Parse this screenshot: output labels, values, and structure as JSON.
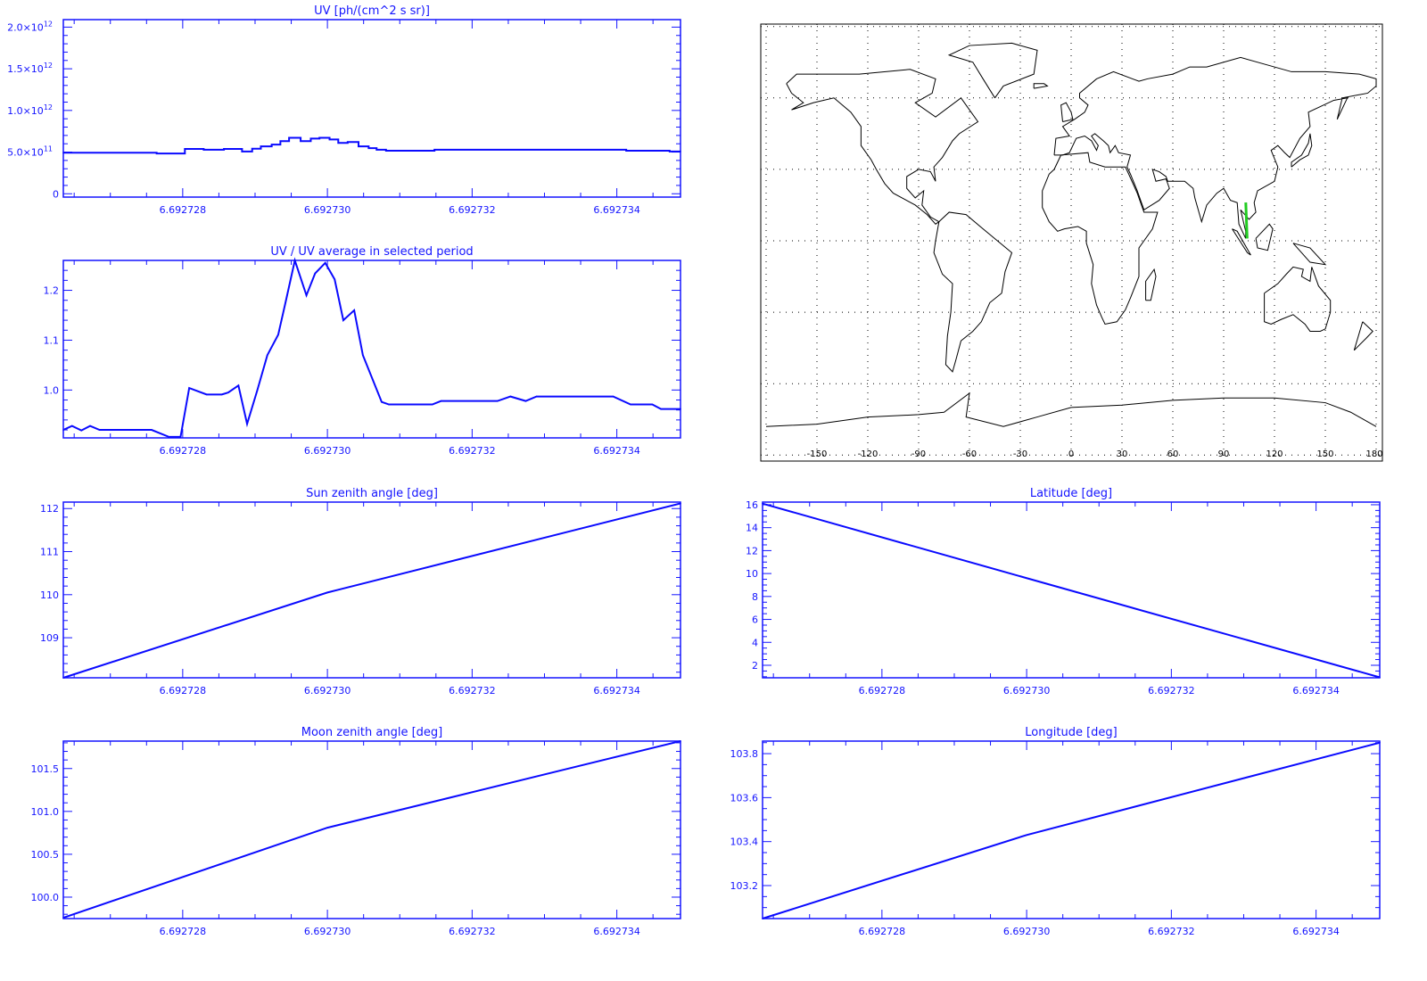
{
  "colors": {
    "axis": "#1414ff",
    "series": "#0a0aff",
    "map_coast": "#000000",
    "map_track": "#22cc22"
  },
  "chart_data": [
    {
      "id": "uv",
      "type": "line",
      "drawstyle": "step",
      "title": "UV [ph/(cm^2 s sr)]",
      "xlim": [
        6.69272635,
        6.69273488
      ],
      "ylim": [
        -40000000000.0,
        2090000000000.0
      ],
      "xticks": [
        {
          "v": 6.692728,
          "label": "6.692728"
        },
        {
          "v": 6.69273,
          "label": "6.692730"
        },
        {
          "v": 6.692732,
          "label": "6.692732"
        },
        {
          "v": 6.692734,
          "label": "6.692734"
        }
      ],
      "xminor": 5e-07,
      "yticks": [
        {
          "v": 0,
          "label": "0"
        },
        {
          "v": 500000000000.0,
          "label": "5.0×10",
          "exp": "11"
        },
        {
          "v": 1000000000000.0,
          "label": "1.0×10",
          "exp": "12"
        },
        {
          "v": 1500000000000.0,
          "label": "1.5×10",
          "exp": "12"
        },
        {
          "v": 2000000000000.0,
          "label": "2.0×10",
          "exp": "12"
        }
      ],
      "yminor": 100000000000.0,
      "x": [
        6.69272635,
        6.69272764,
        6.69272803,
        6.69272829,
        6.69272857,
        6.69272882,
        6.69272896,
        6.69272908,
        6.69272923,
        6.69272935,
        6.69272947,
        6.69272963,
        6.69272977,
        6.69272989,
        6.69273003,
        6.69273015,
        6.69273028,
        6.69273043,
        6.69273057,
        6.69273068,
        6.69273081,
        6.69273148,
        6.69273413,
        6.69273473,
        6.69273488
      ],
      "y": [
        493000000000.0,
        483000000000.0,
        538000000000.0,
        528000000000.0,
        538000000000.0,
        507000000000.0,
        541000000000.0,
        569000000000.0,
        590000000000.0,
        631000000000.0,
        672000000000.0,
        631000000000.0,
        662000000000.0,
        672000000000.0,
        652000000000.0,
        610000000000.0,
        621000000000.0,
        569000000000.0,
        548000000000.0,
        528000000000.0,
        517000000000.0,
        528000000000.0,
        517000000000.0,
        507000000000.0,
        507000000000.0
      ]
    },
    {
      "id": "uv-ratio",
      "type": "line",
      "title": "UV / UV average in selected period",
      "xlim": [
        6.69272635,
        6.69273488
      ],
      "ylim": [
        0.904,
        1.26
      ],
      "xticks": [
        {
          "v": 6.692728,
          "label": "6.692728"
        },
        {
          "v": 6.69273,
          "label": "6.692730"
        },
        {
          "v": 6.692732,
          "label": "6.692732"
        },
        {
          "v": 6.692734,
          "label": "6.692734"
        }
      ],
      "xminor": 5e-07,
      "yticks": [
        {
          "v": 1.0,
          "label": "1.0"
        },
        {
          "v": 1.1,
          "label": "1.1"
        },
        {
          "v": 1.2,
          "label": "1.2"
        }
      ],
      "yminor": 0.02,
      "x": [
        6.69272635,
        6.69272647,
        6.6927266,
        6.69272672,
        6.69272685,
        6.69272757,
        6.69272781,
        6.69272797,
        6.69272809,
        6.69272833,
        6.69272854,
        6.69272863,
        6.69272877,
        6.69272889,
        6.69272903,
        6.69272917,
        6.69272932,
        6.69272942,
        6.69272955,
        6.69272971,
        6.69272983,
        6.69272997,
        6.6927301,
        6.69273022,
        6.69273037,
        6.69273049,
        6.69273075,
        6.69273085,
        6.69273145,
        6.69273157,
        6.69273235,
        6.69273253,
        6.69273274,
        6.69273289,
        6.69273395,
        6.69273419,
        6.69273449,
        6.69273461,
        6.69273488
      ],
      "y": [
        0.92,
        0.928,
        0.919,
        0.928,
        0.92,
        0.92,
        0.906,
        0.906,
        1.004,
        0.991,
        0.991,
        0.995,
        1.009,
        0.932,
        0.999,
        1.07,
        1.111,
        1.175,
        1.26,
        1.19,
        1.234,
        1.255,
        1.222,
        1.14,
        1.16,
        1.07,
        0.976,
        0.971,
        0.971,
        0.978,
        0.978,
        0.987,
        0.978,
        0.987,
        0.987,
        0.971,
        0.971,
        0.962,
        0.962
      ]
    },
    {
      "id": "sun-zenith",
      "type": "line",
      "title": "Sun zenith angle [deg]",
      "xlim": [
        6.69272635,
        6.69273488
      ],
      "ylim": [
        108.07,
        112.15
      ],
      "xticks": [
        {
          "v": 6.692728,
          "label": "6.692728"
        },
        {
          "v": 6.69273,
          "label": "6.692730"
        },
        {
          "v": 6.692732,
          "label": "6.692732"
        },
        {
          "v": 6.692734,
          "label": "6.692734"
        }
      ],
      "xminor": 5e-07,
      "yticks": [
        {
          "v": 109,
          "label": "109"
        },
        {
          "v": 110,
          "label": "110"
        },
        {
          "v": 111,
          "label": "111"
        },
        {
          "v": 112,
          "label": "112"
        }
      ],
      "yminor": 0.2,
      "x": [
        6.69272635,
        6.69273,
        6.69273488
      ],
      "y": [
        108.07,
        110.05,
        112.12
      ]
    },
    {
      "id": "moon-zenith",
      "type": "line",
      "title": "Moon zenith angle [deg]",
      "xlim": [
        6.69272635,
        6.69273488
      ],
      "ylim": [
        99.75,
        101.82
      ],
      "xticks": [
        {
          "v": 6.692728,
          "label": "6.692728"
        },
        {
          "v": 6.69273,
          "label": "6.692730"
        },
        {
          "v": 6.692732,
          "label": "6.692732"
        },
        {
          "v": 6.692734,
          "label": "6.692734"
        }
      ],
      "xminor": 5e-07,
      "yticks": [
        {
          "v": 100.0,
          "label": "100.0"
        },
        {
          "v": 100.5,
          "label": "100.5"
        },
        {
          "v": 101.0,
          "label": "101.0"
        },
        {
          "v": 101.5,
          "label": "101.5"
        }
      ],
      "yminor": 0.1,
      "x": [
        6.69272635,
        6.69273,
        6.69273488
      ],
      "y": [
        99.76,
        100.81,
        101.82
      ]
    },
    {
      "id": "latitude",
      "type": "line",
      "title": "Latitude [deg]",
      "xlim": [
        6.69272635,
        6.69273488
      ],
      "ylim": [
        0.91,
        16.23
      ],
      "xticks": [
        {
          "v": 6.692728,
          "label": "6.692728"
        },
        {
          "v": 6.69273,
          "label": "6.692730"
        },
        {
          "v": 6.692732,
          "label": "6.692732"
        },
        {
          "v": 6.692734,
          "label": "6.692734"
        }
      ],
      "xminor": 5e-07,
      "yticks": [
        {
          "v": 2,
          "label": "2"
        },
        {
          "v": 4,
          "label": "4"
        },
        {
          "v": 6,
          "label": "6"
        },
        {
          "v": 8,
          "label": "8"
        },
        {
          "v": 10,
          "label": "10"
        },
        {
          "v": 12,
          "label": "12"
        },
        {
          "v": 14,
          "label": "14"
        },
        {
          "v": 16,
          "label": "16"
        }
      ],
      "yminor": 0.5,
      "x": [
        6.69272635,
        6.69273,
        6.69273488
      ],
      "y": [
        16.1,
        9.6,
        0.95
      ]
    },
    {
      "id": "longitude",
      "type": "line",
      "title": "Longitude [deg]",
      "xlim": [
        6.69272635,
        6.69273488
      ],
      "ylim": [
        103.05,
        103.857
      ],
      "xticks": [
        {
          "v": 6.692728,
          "label": "6.692728"
        },
        {
          "v": 6.69273,
          "label": "6.692730"
        },
        {
          "v": 6.692732,
          "label": "6.692732"
        },
        {
          "v": 6.692734,
          "label": "6.692734"
        }
      ],
      "xminor": 5e-07,
      "yticks": [
        {
          "v": 103.2,
          "label": "103.2"
        },
        {
          "v": 103.4,
          "label": "103.4"
        },
        {
          "v": 103.6,
          "label": "103.6"
        },
        {
          "v": 103.8,
          "label": "103.8"
        }
      ],
      "yminor": 0.05,
      "x": [
        6.69272635,
        6.69273,
        6.69273488
      ],
      "y": [
        103.05,
        103.43,
        103.85
      ]
    }
  ],
  "map": {
    "projection": "equirectangular",
    "lon_range": [
      -180,
      180
    ],
    "lat_range": [
      -90,
      90
    ],
    "grid": "dotted, every 30 deg",
    "lon_labels": [
      "-150",
      "-120",
      "-90",
      "-60",
      "-30",
      "0",
      "30",
      "60",
      "90",
      "120",
      "150",
      "180"
    ],
    "track": {
      "lon": [
        103.05,
        103.85
      ],
      "lat": [
        16.1,
        0.95
      ]
    }
  }
}
